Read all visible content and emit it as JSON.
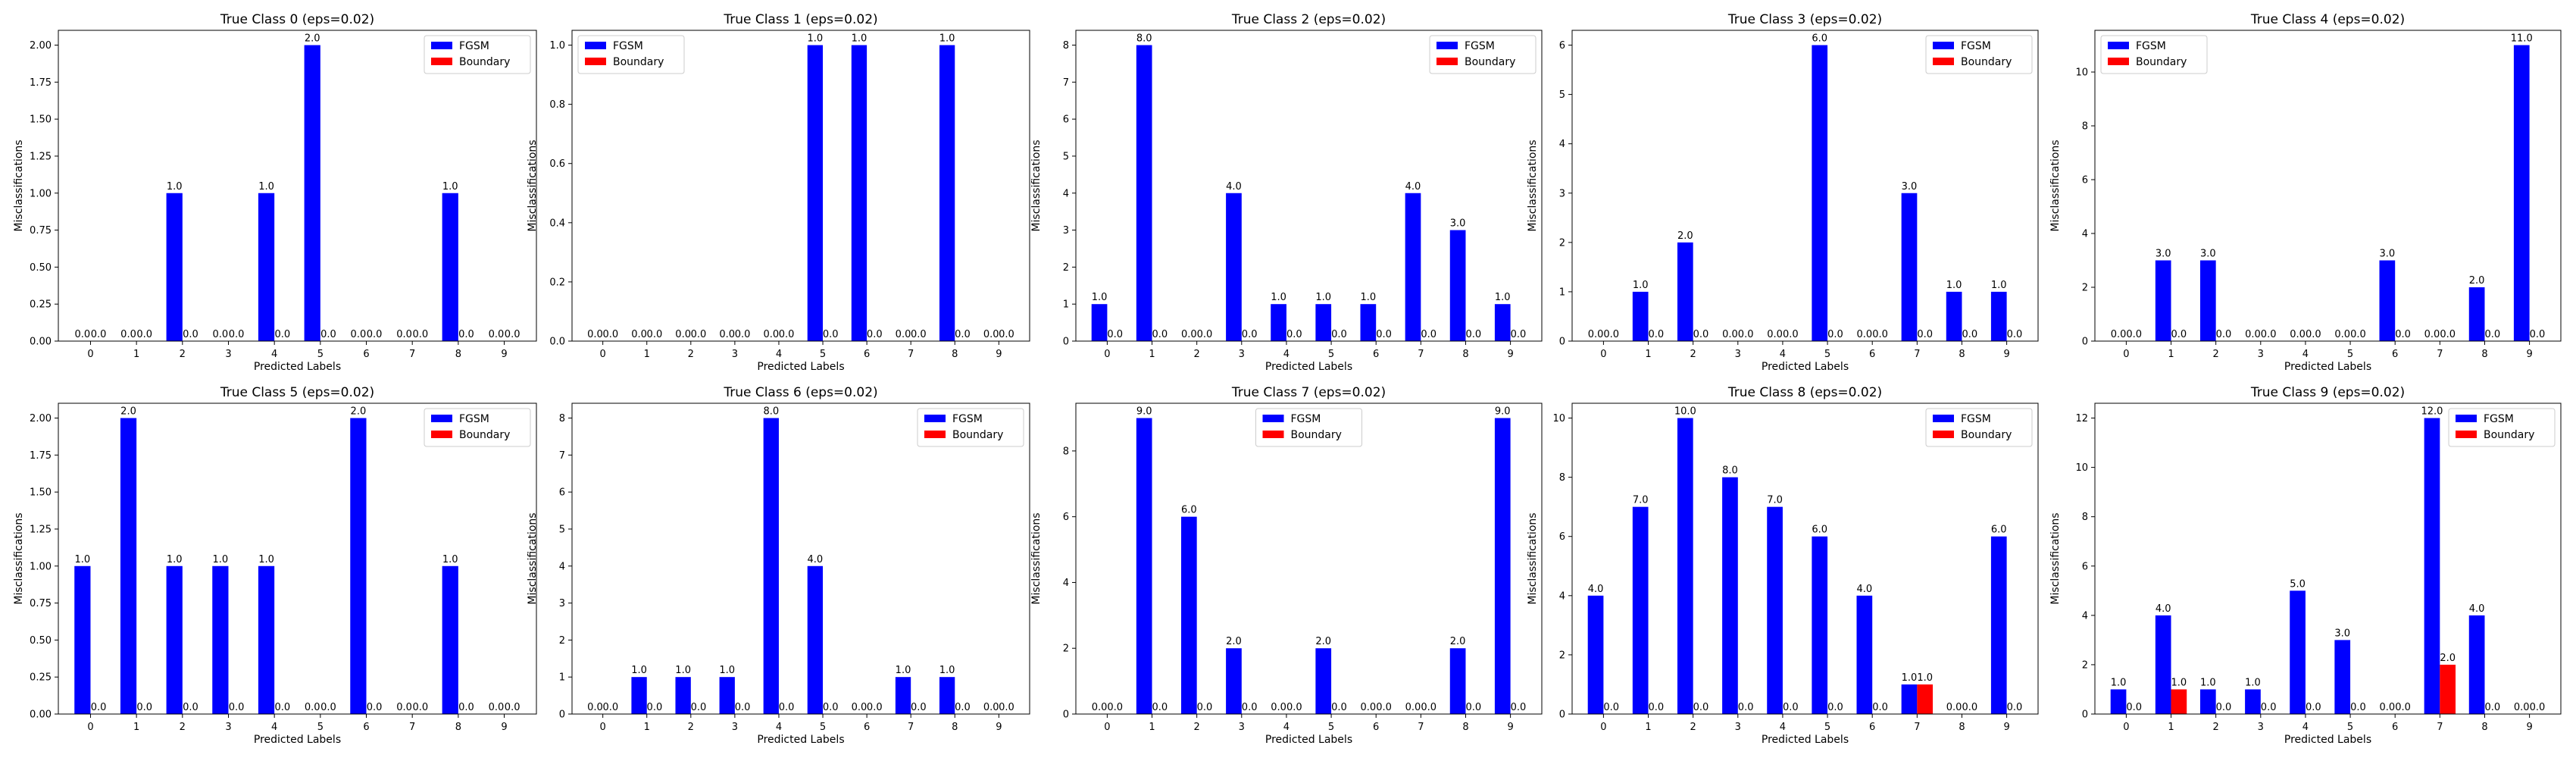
{
  "colors": {
    "fgsm": "#0000ff",
    "boundary": "#ff0000"
  },
  "chart_data": [
    {
      "type": "bar",
      "title": "True Class 0 (eps=0.02)",
      "xlabel": "Predicted Labels",
      "ylabel": "Misclassifications",
      "categories": [
        "0",
        "1",
        "2",
        "3",
        "4",
        "5",
        "6",
        "7",
        "8",
        "9"
      ],
      "series": [
        {
          "name": "FGSM",
          "values": [
            0,
            0,
            1,
            0,
            1,
            2,
            0,
            0,
            1,
            0
          ]
        },
        {
          "name": "Boundary",
          "values": [
            0,
            0,
            0,
            0,
            0,
            0,
            0,
            0,
            0,
            0
          ]
        }
      ],
      "ylim": [
        0,
        2.1
      ],
      "yticks": [
        "0.00",
        "0.25",
        "0.50",
        "0.75",
        "1.00",
        "1.25",
        "1.50",
        "1.75",
        "2.00"
      ],
      "legend": "top-right"
    },
    {
      "type": "bar",
      "title": "True Class 1 (eps=0.02)",
      "xlabel": "Predicted Labels",
      "ylabel": "Misclassifications",
      "categories": [
        "0",
        "1",
        "2",
        "3",
        "4",
        "5",
        "6",
        "7",
        "8",
        "9"
      ],
      "series": [
        {
          "name": "FGSM",
          "values": [
            0,
            0,
            0,
            0,
            0,
            1,
            1,
            0,
            1,
            0
          ]
        },
        {
          "name": "Boundary",
          "values": [
            0,
            0,
            0,
            0,
            0,
            0,
            0,
            0,
            0,
            0
          ]
        }
      ],
      "ylim": [
        0,
        1.05
      ],
      "yticks": [
        "0.0",
        "0.2",
        "0.4",
        "0.6",
        "0.8",
        "1.0"
      ],
      "legend": "top-left"
    },
    {
      "type": "bar",
      "title": "True Class 2 (eps=0.02)",
      "xlabel": "Predicted Labels",
      "ylabel": "Misclassifications",
      "categories": [
        "0",
        "1",
        "2",
        "3",
        "4",
        "5",
        "6",
        "7",
        "8",
        "9"
      ],
      "series": [
        {
          "name": "FGSM",
          "values": [
            1,
            8,
            0,
            4,
            1,
            1,
            1,
            4,
            3,
            1
          ]
        },
        {
          "name": "Boundary",
          "values": [
            0,
            0,
            0,
            0,
            0,
            0,
            0,
            0,
            0,
            0
          ]
        }
      ],
      "ylim": [
        0,
        8.4
      ],
      "yticks": [
        "0",
        "1",
        "2",
        "3",
        "4",
        "5",
        "6",
        "7",
        "8"
      ],
      "legend": "top-right"
    },
    {
      "type": "bar",
      "title": "True Class 3 (eps=0.02)",
      "xlabel": "Predicted Labels",
      "ylabel": "Misclassifications",
      "categories": [
        "0",
        "1",
        "2",
        "3",
        "4",
        "5",
        "6",
        "7",
        "8",
        "9"
      ],
      "series": [
        {
          "name": "FGSM",
          "values": [
            0,
            1,
            2,
            0,
            0,
            6,
            0,
            3,
            1,
            1
          ]
        },
        {
          "name": "Boundary",
          "values": [
            0,
            0,
            0,
            0,
            0,
            0,
            0,
            0,
            0,
            0
          ]
        }
      ],
      "ylim": [
        0,
        6.3
      ],
      "yticks": [
        "0",
        "1",
        "2",
        "3",
        "4",
        "5",
        "6"
      ],
      "legend": "top-right"
    },
    {
      "type": "bar",
      "title": "True Class 4 (eps=0.02)",
      "xlabel": "Predicted Labels",
      "ylabel": "Misclassifications",
      "categories": [
        "0",
        "1",
        "2",
        "3",
        "4",
        "5",
        "6",
        "7",
        "8",
        "9"
      ],
      "series": [
        {
          "name": "FGSM",
          "values": [
            0,
            3,
            3,
            0,
            0,
            0,
            3,
            0,
            2,
            11
          ]
        },
        {
          "name": "Boundary",
          "values": [
            0,
            0,
            0,
            0,
            0,
            0,
            0,
            0,
            0,
            0
          ]
        }
      ],
      "ylim": [
        0,
        11.55
      ],
      "yticks": [
        "0",
        "2",
        "4",
        "6",
        "8",
        "10"
      ],
      "legend": "top-left"
    },
    {
      "type": "bar",
      "title": "True Class 5 (eps=0.02)",
      "xlabel": "Predicted Labels",
      "ylabel": "Misclassifications",
      "categories": [
        "0",
        "1",
        "2",
        "3",
        "4",
        "5",
        "6",
        "7",
        "8",
        "9"
      ],
      "series": [
        {
          "name": "FGSM",
          "values": [
            1,
            2,
            1,
            1,
            1,
            0,
            2,
            0,
            1,
            0
          ]
        },
        {
          "name": "Boundary",
          "values": [
            0,
            0,
            0,
            0,
            0,
            0,
            0,
            0,
            0,
            0
          ]
        }
      ],
      "ylim": [
        0,
        2.1
      ],
      "yticks": [
        "0.00",
        "0.25",
        "0.50",
        "0.75",
        "1.00",
        "1.25",
        "1.50",
        "1.75",
        "2.00"
      ],
      "legend": "top-right"
    },
    {
      "type": "bar",
      "title": "True Class 6 (eps=0.02)",
      "xlabel": "Predicted Labels",
      "ylabel": "Misclassifications",
      "categories": [
        "0",
        "1",
        "2",
        "3",
        "4",
        "5",
        "6",
        "7",
        "8",
        "9"
      ],
      "series": [
        {
          "name": "FGSM",
          "values": [
            0,
            1,
            1,
            1,
            8,
            4,
            0,
            1,
            1,
            0
          ]
        },
        {
          "name": "Boundary",
          "values": [
            0,
            0,
            0,
            0,
            0,
            0,
            0,
            0,
            0,
            0
          ]
        }
      ],
      "ylim": [
        0,
        8.4
      ],
      "yticks": [
        "0",
        "1",
        "2",
        "3",
        "4",
        "5",
        "6",
        "7",
        "8"
      ],
      "legend": "top-right"
    },
    {
      "type": "bar",
      "title": "True Class 7 (eps=0.02)",
      "xlabel": "Predicted Labels",
      "ylabel": "Misclassifications",
      "categories": [
        "0",
        "1",
        "2",
        "3",
        "4",
        "5",
        "6",
        "7",
        "8",
        "9"
      ],
      "series": [
        {
          "name": "FGSM",
          "values": [
            0,
            9,
            6,
            2,
            0,
            2,
            0,
            0,
            2,
            9
          ]
        },
        {
          "name": "Boundary",
          "values": [
            0,
            0,
            0,
            0,
            0,
            0,
            0,
            0,
            0,
            0
          ]
        }
      ],
      "ylim": [
        0,
        9.45
      ],
      "yticks": [
        "0",
        "2",
        "4",
        "6",
        "8"
      ],
      "legend": "top-center"
    },
    {
      "type": "bar",
      "title": "True Class 8 (eps=0.02)",
      "xlabel": "Predicted Labels",
      "ylabel": "Misclassifications",
      "categories": [
        "0",
        "1",
        "2",
        "3",
        "4",
        "5",
        "6",
        "7",
        "8",
        "9"
      ],
      "series": [
        {
          "name": "FGSM",
          "values": [
            4,
            7,
            10,
            8,
            7,
            6,
            4,
            1,
            0,
            6
          ]
        },
        {
          "name": "Boundary",
          "values": [
            0,
            0,
            0,
            0,
            0,
            0,
            0,
            1,
            0,
            0
          ]
        }
      ],
      "ylim": [
        0,
        10.5
      ],
      "yticks": [
        "0",
        "2",
        "4",
        "6",
        "8",
        "10"
      ],
      "legend": "top-right"
    },
    {
      "type": "bar",
      "title": "True Class 9 (eps=0.02)",
      "xlabel": "Predicted Labels",
      "ylabel": "Misclassifications",
      "categories": [
        "0",
        "1",
        "2",
        "3",
        "4",
        "5",
        "6",
        "7",
        "8",
        "9"
      ],
      "series": [
        {
          "name": "FGSM",
          "values": [
            1,
            4,
            1,
            1,
            5,
            3,
            0,
            12,
            4,
            0
          ]
        },
        {
          "name": "Boundary",
          "values": [
            0,
            1,
            0,
            0,
            0,
            0,
            0,
            2,
            0,
            0
          ]
        }
      ],
      "ylim": [
        0,
        12.6
      ],
      "yticks": [
        "0",
        "2",
        "4",
        "6",
        "8",
        "10",
        "12"
      ],
      "legend": "top-right"
    }
  ]
}
